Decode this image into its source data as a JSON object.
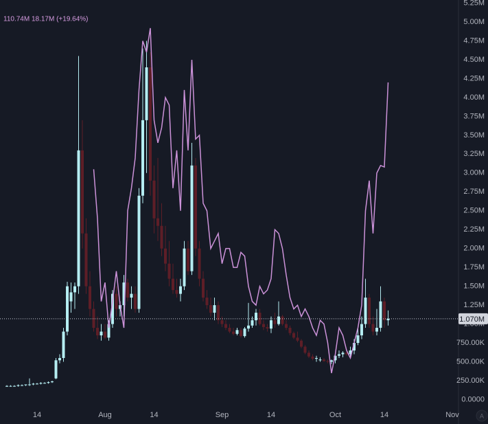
{
  "chart_data": {
    "type": "candlestick",
    "overlay_label": "110.74M 18.17M (+19.64%)",
    "scale_button": "A",
    "x": [
      5,
      6,
      7,
      8,
      9,
      10,
      11,
      12,
      13,
      14,
      15,
      16,
      17,
      18,
      19,
      20,
      21,
      22,
      23,
      24,
      25,
      26,
      27,
      28,
      29,
      30,
      31,
      32,
      33,
      34,
      35,
      36,
      37,
      38,
      39,
      40,
      41,
      42,
      43,
      44,
      45,
      46,
      47,
      48,
      49,
      50,
      51,
      52,
      53,
      54,
      55,
      56,
      57,
      58,
      59,
      60,
      61,
      62,
      63,
      64,
      65,
      66,
      67,
      68,
      69,
      70,
      71,
      72,
      73,
      74,
      75,
      76,
      77,
      78,
      79,
      80,
      81,
      82,
      83,
      84,
      85,
      86,
      87,
      88,
      89,
      90,
      91,
      92,
      93,
      94,
      95,
      96,
      97,
      98,
      99,
      100,
      101,
      102,
      103,
      104,
      105,
      106
    ],
    "open": [
      170000,
      180000,
      180000,
      180000,
      190000,
      190000,
      200000,
      200000,
      210000,
      210000,
      220000,
      220000,
      230000,
      280000,
      520000,
      550000,
      900000,
      1300000,
      1420000,
      1500000,
      3300000,
      2200000,
      1500000,
      1200000,
      950000,
      850000,
      900000,
      820000,
      1000000,
      1400000,
      1200000,
      1250000,
      1550000,
      1350000,
      1400000,
      1200000,
      2700000,
      3700000,
      4400000,
      2900000,
      2400000,
      2300000,
      2000000,
      1800000,
      1600000,
      1450000,
      1400000,
      1500000,
      2000000,
      1700000,
      3100000,
      2000000,
      1600000,
      1350000,
      1250000,
      1150000,
      1250000,
      1050000,
      1000000,
      950000,
      900000,
      870000,
      920000,
      840000,
      940000,
      980000,
      1050000,
      1150000,
      1000000,
      960000,
      940000,
      1050000,
      1000000,
      1100000,
      1000000,
      950000,
      880000,
      820000,
      780000,
      700000,
      620000,
      570000,
      540000,
      520000,
      530000,
      510000,
      500000,
      520000,
      580000,
      600000,
      620000,
      600000,
      650000,
      750000,
      850000,
      1000000,
      1350000,
      1000000,
      900000,
      950000,
      1300000,
      1050000
    ],
    "high": [
      190000,
      190000,
      190000,
      200000,
      200000,
      200000,
      280000,
      220000,
      220000,
      230000,
      230000,
      240000,
      250000,
      550000,
      600000,
      950000,
      1560000,
      1550000,
      1550000,
      4550000,
      3700000,
      2400000,
      1700000,
      1300000,
      1100000,
      1000000,
      1000000,
      1050000,
      1450000,
      1500000,
      1300000,
      1650000,
      1600000,
      1500000,
      1500000,
      2800000,
      4650000,
      4750000,
      4600000,
      3100000,
      3200000,
      2600000,
      2300000,
      2100000,
      1800000,
      1600000,
      1600000,
      2100000,
      2100000,
      3400000,
      3200000,
      2100000,
      1700000,
      1450000,
      1350000,
      1350000,
      1300000,
      1100000,
      1050000,
      1000000,
      950000,
      950000,
      950000,
      960000,
      1280000,
      1100000,
      1200000,
      1200000,
      1050000,
      1000000,
      1100000,
      1150000,
      1300000,
      1120000,
      1050000,
      980000,
      900000,
      900000,
      800000,
      720000,
      650000,
      600000,
      580000,
      560000,
      550000,
      530000,
      530000,
      620000,
      650000,
      640000,
      660000,
      700000,
      800000,
      950000,
      1100000,
      1600000,
      1400000,
      1100000,
      1200000,
      1500000,
      1350000,
      1180000
    ],
    "low": [
      170000,
      170000,
      170000,
      170000,
      180000,
      180000,
      180000,
      190000,
      200000,
      200000,
      210000,
      210000,
      220000,
      270000,
      480000,
      500000,
      850000,
      1150000,
      1200000,
      1400000,
      2000000,
      1400000,
      1100000,
      900000,
      800000,
      780000,
      800000,
      780000,
      950000,
      1100000,
      1100000,
      1100000,
      1300000,
      1200000,
      1150000,
      1150000,
      2600000,
      3000000,
      2700000,
      2200000,
      2100000,
      1900000,
      1700000,
      1500000,
      1400000,
      1350000,
      1300000,
      1450000,
      1650000,
      1650000,
      1900000,
      1500000,
      1300000,
      1200000,
      1100000,
      1050000,
      1000000,
      960000,
      920000,
      880000,
      850000,
      850000,
      820000,
      820000,
      900000,
      950000,
      980000,
      980000,
      920000,
      900000,
      880000,
      950000,
      980000,
      980000,
      920000,
      850000,
      800000,
      760000,
      680000,
      600000,
      550000,
      520000,
      500000,
      500000,
      500000,
      480000,
      470000,
      480000,
      550000,
      560000,
      580000,
      570000,
      600000,
      720000,
      800000,
      950000,
      950000,
      850000,
      850000,
      900000,
      950000,
      980000
    ],
    "close": [
      180000,
      180000,
      180000,
      190000,
      190000,
      200000,
      200000,
      210000,
      210000,
      220000,
      220000,
      230000,
      240000,
      520000,
      550000,
      900000,
      1500000,
      1420000,
      1500000,
      3300000,
      2200000,
      1500000,
      1200000,
      950000,
      850000,
      900000,
      820000,
      1000000,
      1400000,
      1200000,
      1250000,
      1550000,
      1350000,
      1400000,
      1200000,
      2700000,
      3700000,
      4400000,
      2900000,
      2400000,
      2300000,
      2000000,
      1800000,
      1600000,
      1450000,
      1400000,
      1500000,
      2000000,
      1700000,
      3100000,
      2000000,
      1600000,
      1350000,
      1250000,
      1150000,
      1250000,
      1050000,
      1000000,
      950000,
      900000,
      870000,
      920000,
      840000,
      940000,
      980000,
      1050000,
      1150000,
      1000000,
      960000,
      940000,
      1050000,
      1000000,
      1100000,
      1000000,
      950000,
      880000,
      820000,
      780000,
      700000,
      620000,
      570000,
      540000,
      550000,
      530000,
      510000,
      500000,
      520000,
      580000,
      600000,
      620000,
      600000,
      650000,
      750000,
      850000,
      1000000,
      1350000,
      1000000,
      900000,
      950000,
      1300000,
      1050000,
      1070000
    ],
    "up_color": "#b5edf2",
    "down_color": "#5e1e27",
    "line": {
      "color": "#cc92d9",
      "values": [
        null,
        null,
        null,
        null,
        null,
        null,
        null,
        null,
        null,
        null,
        null,
        null,
        null,
        null,
        null,
        null,
        null,
        null,
        null,
        null,
        null,
        null,
        null,
        3050000,
        2400000,
        1300000,
        1550000,
        950000,
        1300000,
        1700000,
        1250000,
        950000,
        2500000,
        2800000,
        3200000,
        4100000,
        4750000,
        4600000,
        4920000,
        3700000,
        3400000,
        3600000,
        4000000,
        3900000,
        2800000,
        3300000,
        2500000,
        4100000,
        3300000,
        4500000,
        3450000,
        3500000,
        2600000,
        2500000,
        2000000,
        2100000,
        2200000,
        1800000,
        2000000,
        2000000,
        1750000,
        1750000,
        1950000,
        1900000,
        1500000,
        1300000,
        1250000,
        1500000,
        1400000,
        1450000,
        1600000,
        2250000,
        2200000,
        2000000,
        1650000,
        1350000,
        1200000,
        1250000,
        1100000,
        1200000,
        1100000,
        950000,
        850000,
        1050000,
        1000000,
        750000,
        350000,
        600000,
        950000,
        850000,
        650000,
        550000,
        750000,
        950000,
        1250000,
        2500000,
        2900000,
        2200000,
        3000000,
        3100000,
        3080000,
        4200000
      ]
    },
    "last_price": {
      "value": 1070000,
      "label": "1.070M"
    },
    "xlim": [
      3.18,
      124.64
    ],
    "xticks": [
      {
        "value": 13,
        "label": "14"
      },
      {
        "value": 31,
        "label": "Aug"
      },
      {
        "value": 44,
        "label": "14"
      },
      {
        "value": 62,
        "label": "Sep"
      },
      {
        "value": 75,
        "label": "14"
      },
      {
        "value": 92,
        "label": "Oct"
      },
      {
        "value": 105,
        "label": "14"
      },
      {
        "value": 123,
        "label": "Nov"
      }
    ],
    "ylim": [
      -110000,
      5250000
    ],
    "yticks": [
      {
        "value": 0,
        "label": "0.0000"
      },
      {
        "value": 250000,
        "label": "250.00K"
      },
      {
        "value": 500000,
        "label": "500.00K"
      },
      {
        "value": 750000,
        "label": "750.00K"
      },
      {
        "value": 1000000,
        "label": "1.00M"
      },
      {
        "value": 1250000,
        "label": "1.25M"
      },
      {
        "value": 1500000,
        "label": "1.50M"
      },
      {
        "value": 1750000,
        "label": "1.75M"
      },
      {
        "value": 2000000,
        "label": "2.00M"
      },
      {
        "value": 2250000,
        "label": "2.25M"
      },
      {
        "value": 2500000,
        "label": "2.50M"
      },
      {
        "value": 2750000,
        "label": "2.75M"
      },
      {
        "value": 3000000,
        "label": "3.00M"
      },
      {
        "value": 3250000,
        "label": "3.25M"
      },
      {
        "value": 3500000,
        "label": "3.50M"
      },
      {
        "value": 3750000,
        "label": "3.75M"
      },
      {
        "value": 4000000,
        "label": "4.00M"
      },
      {
        "value": 4250000,
        "label": "4.25M"
      },
      {
        "value": 4500000,
        "label": "4.50M"
      },
      {
        "value": 4750000,
        "label": "4.75M"
      },
      {
        "value": 5000000,
        "label": "5.00M"
      },
      {
        "value": 5250000,
        "label": "5.25M"
      }
    ],
    "grid": false
  }
}
